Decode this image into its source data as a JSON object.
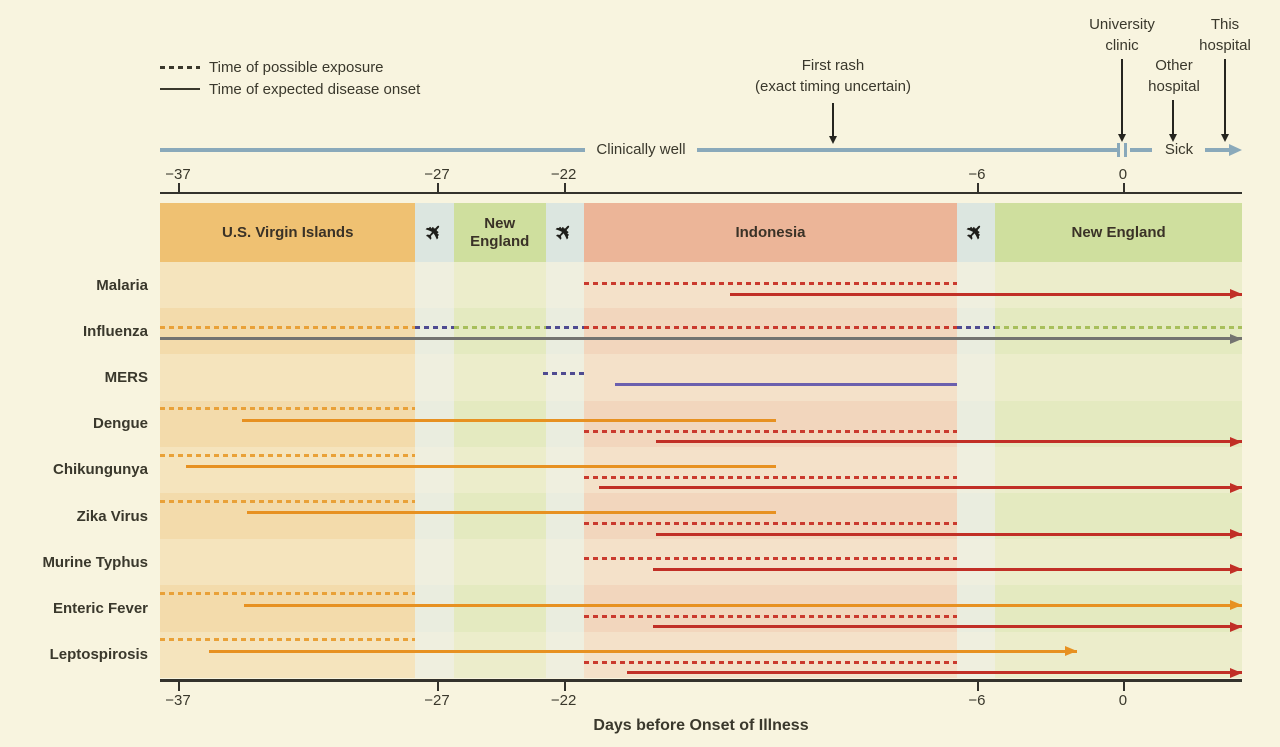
{
  "colors": {
    "background": "#f8f4df",
    "text": "#3a382c",
    "timeline_blue": "#8aa9ba",
    "axis": "#33322c",
    "orange": "#e79121",
    "orange_dash": "#e9a138",
    "red": "#c12f26",
    "red_dash": "#ca3a2e",
    "purple": "#6b5fae",
    "purple_dash": "#4f4b91",
    "green_dash": "#a7bf5b",
    "gray": "#737370",
    "band_usvi": "#efc172",
    "band_travel": "#dce6e0",
    "band_ne": "#cfdf9e",
    "band_indonesia": "#ecb598"
  },
  "legend": {
    "exposure": "Time of possible exposure",
    "onset": "Time of expected disease onset"
  },
  "annotations": {
    "first_rash": "First rash\n(exact timing uncertain)",
    "university_clinic": "University\nclinic",
    "other_hospital": "Other\nhospital",
    "this_hospital": "This\nhospital",
    "clinically_well": "Clinically well",
    "sick": "Sick"
  },
  "chart_data": {
    "type": "timeline",
    "x_unit": "days relative to onset of illness",
    "xlabel": "Days before Onset of Illness",
    "domain": [
      -37.7,
      4.66
    ],
    "ticks": [
      {
        "value": -37,
        "pct": 1.66
      },
      {
        "value": -27,
        "pct": 25.6
      },
      {
        "value": -22,
        "pct": 37.3
      },
      {
        "value": -6,
        "pct": 75.5
      },
      {
        "value": 0,
        "pct": 89.0
      }
    ],
    "regions": [
      {
        "label": "U.S. Virgin Islands",
        "band": "usvi",
        "start": -37.7,
        "end": -27.7
      },
      {
        "label": "",
        "band": "travel",
        "icon": "plane",
        "start": -27.7,
        "end": -26.2
      },
      {
        "label": "New England",
        "band": "ne",
        "start": -26.2,
        "end": -22.6
      },
      {
        "label": "",
        "band": "travel",
        "icon": "plane",
        "start": -22.6,
        "end": -21.1
      },
      {
        "label": "Indonesia",
        "band": "indonesia",
        "start": -21.1,
        "end": -6.5
      },
      {
        "label": "",
        "band": "travel",
        "icon": "plane",
        "start": -6.5,
        "end": -5.0
      },
      {
        "label": "New England",
        "band": "ne",
        "start": -5.0,
        "end": 4.66
      }
    ],
    "rows": [
      {
        "disease": "Malaria",
        "lanes": [
          0.44,
          0.67
        ],
        "lines": [
          {
            "lane": 0,
            "style": "dashed",
            "color": "red_dash",
            "start": -21.1,
            "end": -6.5
          },
          {
            "lane": 1,
            "style": "solid",
            "color": "red",
            "start": -15.4,
            "end": 4.66,
            "arrow": true
          }
        ]
      },
      {
        "disease": "Influenza",
        "lanes": [
          0.39,
          0.63
        ],
        "lines": [
          {
            "lane": 0,
            "style": "dashed",
            "color": "orange_dash",
            "start": -37.7,
            "end": -27.7
          },
          {
            "lane": 0,
            "style": "dashed",
            "color": "purple_dash",
            "start": -27.7,
            "end": -26.2
          },
          {
            "lane": 0,
            "style": "dashed",
            "color": "green_dash",
            "start": -26.2,
            "end": -22.6
          },
          {
            "lane": 0,
            "style": "dashed",
            "color": "purple_dash",
            "start": -22.6,
            "end": -21.1
          },
          {
            "lane": 0,
            "style": "dashed",
            "color": "red_dash",
            "start": -21.1,
            "end": -6.5
          },
          {
            "lane": 0,
            "style": "dashed",
            "color": "purple_dash",
            "start": -6.5,
            "end": -5.0
          },
          {
            "lane": 0,
            "style": "dashed",
            "color": "green_dash",
            "start": -5.0,
            "end": 4.66
          },
          {
            "lane": 1,
            "style": "solid",
            "color": "gray",
            "start": -37.7,
            "end": 4.66,
            "arrow": true
          }
        ]
      },
      {
        "disease": "MERS",
        "lanes": [
          0.39,
          0.63
        ],
        "lines": [
          {
            "lane": 0,
            "style": "dashed",
            "color": "purple_dash",
            "start": -22.7,
            "end": -21.1
          },
          {
            "lane": 1,
            "style": "solid",
            "color": "purple",
            "start": -19.9,
            "end": -6.5
          }
        ]
      },
      {
        "disease": "Dengue",
        "lanes": [
          0.15,
          0.4,
          0.64,
          0.86
        ],
        "lines": [
          {
            "lane": 0,
            "style": "dashed",
            "color": "orange_dash",
            "start": -37.7,
            "end": -27.7
          },
          {
            "lane": 1,
            "style": "solid",
            "color": "orange",
            "start": -34.5,
            "end": -13.6
          },
          {
            "lane": 2,
            "style": "dashed",
            "color": "red_dash",
            "start": -21.1,
            "end": -6.5
          },
          {
            "lane": 3,
            "style": "solid",
            "color": "red",
            "start": -18.3,
            "end": 4.66,
            "arrow": true
          }
        ]
      },
      {
        "disease": "Chikungunya",
        "lanes": [
          0.15,
          0.4,
          0.64,
          0.86
        ],
        "lines": [
          {
            "lane": 0,
            "style": "dashed",
            "color": "orange_dash",
            "start": -37.7,
            "end": -27.7
          },
          {
            "lane": 1,
            "style": "solid",
            "color": "orange",
            "start": -36.7,
            "end": -13.6
          },
          {
            "lane": 2,
            "style": "dashed",
            "color": "red_dash",
            "start": -21.1,
            "end": -6.5
          },
          {
            "lane": 3,
            "style": "solid",
            "color": "red",
            "start": -20.5,
            "end": 4.66,
            "arrow": true
          }
        ]
      },
      {
        "disease": "Zika Virus",
        "lanes": [
          0.15,
          0.4,
          0.64,
          0.86
        ],
        "lines": [
          {
            "lane": 0,
            "style": "dashed",
            "color": "orange_dash",
            "start": -37.7,
            "end": -27.7
          },
          {
            "lane": 1,
            "style": "solid",
            "color": "orange",
            "start": -34.3,
            "end": -13.6
          },
          {
            "lane": 2,
            "style": "dashed",
            "color": "red_dash",
            "start": -21.1,
            "end": -6.5
          },
          {
            "lane": 3,
            "style": "solid",
            "color": "red",
            "start": -18.3,
            "end": 4.66,
            "arrow": true
          }
        ]
      },
      {
        "disease": "Murine Typhus",
        "lanes": [
          0.38,
          0.62
        ],
        "lines": [
          {
            "lane": 0,
            "style": "dashed",
            "color": "red_dash",
            "start": -21.1,
            "end": -6.5
          },
          {
            "lane": 1,
            "style": "solid",
            "color": "red",
            "start": -18.4,
            "end": 4.66,
            "arrow": true
          }
        ]
      },
      {
        "disease": "Enteric Fever",
        "lanes": [
          0.15,
          0.4,
          0.64,
          0.86
        ],
        "lines": [
          {
            "lane": 0,
            "style": "dashed",
            "color": "orange_dash",
            "start": -37.7,
            "end": -27.7
          },
          {
            "lane": 1,
            "style": "solid",
            "color": "orange",
            "start": -34.4,
            "end": 4.66,
            "arrow": true
          },
          {
            "lane": 2,
            "style": "dashed",
            "color": "red_dash",
            "start": -21.1,
            "end": -6.5
          },
          {
            "lane": 3,
            "style": "solid",
            "color": "red",
            "start": -18.4,
            "end": 4.66,
            "arrow": true
          }
        ]
      },
      {
        "disease": "Leptospirosis",
        "lanes": [
          0.15,
          0.4,
          0.64,
          0.86
        ],
        "lines": [
          {
            "lane": 0,
            "style": "dashed",
            "color": "orange_dash",
            "start": -37.7,
            "end": -27.7
          },
          {
            "lane": 1,
            "style": "solid",
            "color": "orange",
            "start": -35.8,
            "end": -1.8,
            "arrow": true
          },
          {
            "lane": 2,
            "style": "dashed",
            "color": "red_dash",
            "start": -21.1,
            "end": -6.5
          },
          {
            "lane": 3,
            "style": "solid",
            "color": "red",
            "start": -19.4,
            "end": 4.66,
            "arrow": true
          }
        ]
      }
    ]
  }
}
